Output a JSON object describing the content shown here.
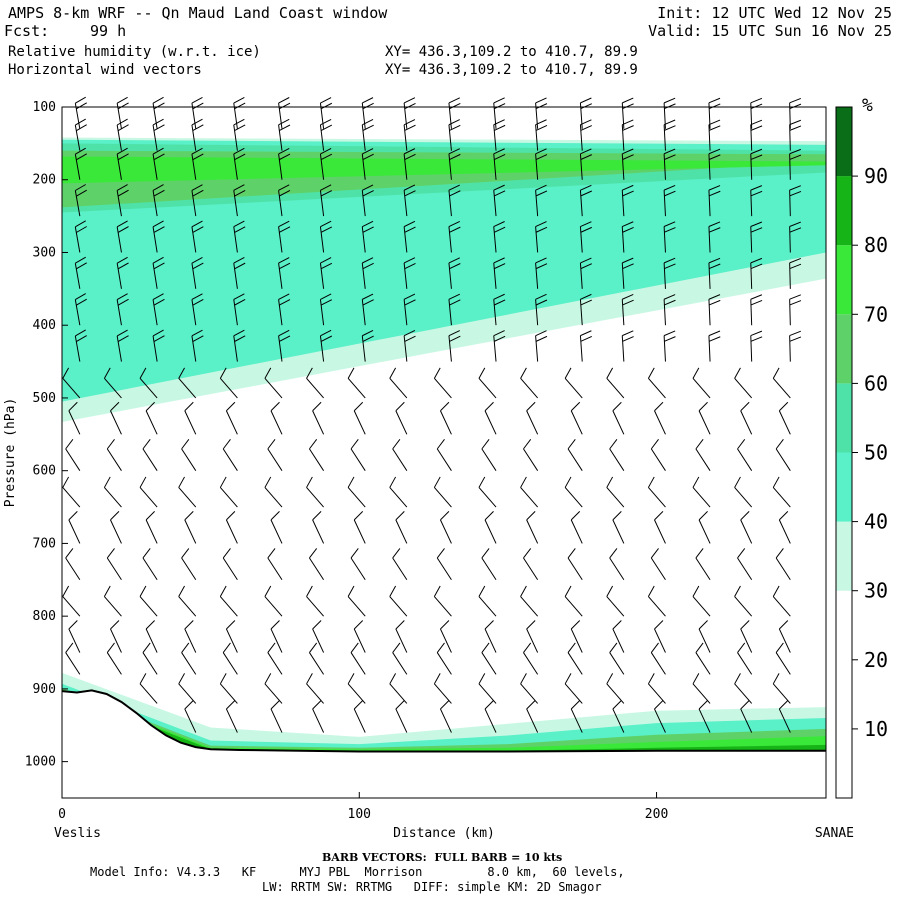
{
  "header": {
    "title": "AMPS 8-km WRF -- Qn Maud Land Coast window",
    "fcst_label": "Fcst:",
    "fcst_value": "99 h",
    "init": "Init: 12 UTC Wed 12 Nov 25",
    "valid": "Valid: 15 UTC Sun 16 Nov 25",
    "field1": "Relative humidity (w.r.t. ice)",
    "field2": "Horizontal wind vectors",
    "xy1": "XY= 436.3,109.2 to 410.7, 89.9",
    "xy2": "XY= 436.3,109.2 to 410.7, 89.9"
  },
  "footer": {
    "barb_note": "BARB VECTORS:  FULL BARB = 10 kts",
    "model_line1": "Model Info: V4.3.3   KF      MYJ PBL  Morrison         8.0 km,  60 levels,",
    "model_line2": "LW: RRTM SW: RRTMG   DIFF: simple KM: 2D Smagor"
  },
  "colors": {
    "rh_30_40": "#c8f8e4",
    "rh_40_50": "#5af0c8",
    "rh_50_60": "#4fe2a8",
    "rh_60_70": "#5ed268",
    "rh_70_80": "#3ae83a",
    "rh_80_90": "#16b416",
    "rh_90_100": "#0a6e18",
    "terrain": "#000000",
    "barb": "#000000"
  },
  "chart_data": {
    "type": "cross-section",
    "title": "Relative humidity (w.r.t. ice) and horizontal wind vectors",
    "xlabel": "Distance (km)",
    "ylabel": "Pressure (hPa)",
    "xlim": [
      0,
      257
    ],
    "ylim": [
      1050,
      100
    ],
    "x_ticks": [
      0,
      100,
      200
    ],
    "y_ticks": [
      100,
      200,
      300,
      400,
      500,
      600,
      700,
      800,
      900,
      1000
    ],
    "left_endpoint": "Veslis",
    "right_endpoint": "SANAE",
    "colorbar": {
      "unit": "%",
      "levels": [
        0,
        10,
        20,
        30,
        40,
        50,
        60,
        70,
        80,
        90,
        100
      ],
      "tick_labels": [
        10,
        20,
        30,
        40,
        50,
        60,
        70,
        80,
        90
      ]
    },
    "terrain_surface_hPa": {
      "x": [
        0,
        5,
        10,
        15,
        20,
        25,
        30,
        35,
        40,
        45,
        50,
        60,
        80,
        100,
        150,
        200,
        257
      ],
      "p": [
        903,
        905,
        902,
        907,
        918,
        933,
        950,
        964,
        974,
        980,
        983,
        984,
        985,
        986,
        986,
        985,
        985
      ]
    },
    "rh_bands": [
      {
        "range": "30-40",
        "top_left": 142,
        "top_right": 147,
        "bottom_left": 533,
        "bottom_right": 336
      },
      {
        "range": "40-50",
        "top_left": 145,
        "top_right": 152,
        "bottom_left": 505,
        "bottom_right": 300
      },
      {
        "range": "50-60",
        "top_left": 150,
        "top_right": 160,
        "bottom_left": 245,
        "bottom_right": 190
      },
      {
        "range": "60-70",
        "top_left": 160,
        "top_right": 165,
        "bottom_left": 238,
        "bottom_right": 175
      },
      {
        "range": "70-80",
        "top_left": 168,
        "top_right": 175,
        "bottom_left": 205,
        "bottom_right": 180
      }
    ],
    "wind_barbs": {
      "columns_x_km": [
        6,
        20,
        32,
        45,
        59,
        74,
        88,
        102,
        116,
        131,
        146,
        160,
        175,
        189,
        203,
        218,
        232,
        245
      ],
      "pressure_levels_hPa": [
        130,
        160,
        200,
        250,
        300,
        350,
        400,
        450,
        500,
        550,
        600,
        650,
        700,
        750,
        800,
        850,
        880,
        920,
        960
      ],
      "upper_full_barbs": 2,
      "lower_full_barbs": 1
    }
  }
}
